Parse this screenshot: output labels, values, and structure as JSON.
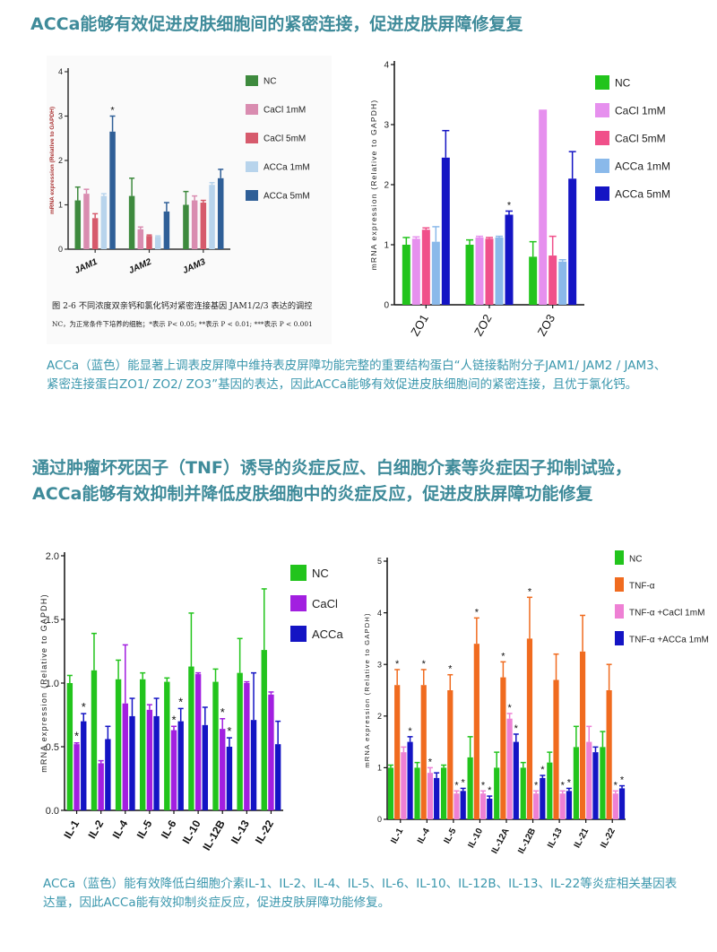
{
  "section1": {
    "heading": "ACCa能够有效促进皮肤细胞间的紧密连接，促进皮肤屏障修复复",
    "description": "ACCa（蓝色）能显著上调表皮屏障中维持表皮屏障功能完整的重要结构蛋白“人链接黏附分子JAM1/ JAM2 / JAM3、 紧密连接蛋白ZO1/ ZO2/ ZO3”基因的表达，因此ACCa能够有效促进皮肤细胞间的紧密连接，且优于氯化钙。"
  },
  "section2": {
    "heading": "通过肿瘤坏死因子（TNF）诱导的炎症反应、白细胞介素等炎症因子抑制试验， ACCa能够有效抑制并降低皮肤细胞中的炎症反应，促进皮肤屏障功能修复",
    "description": "ACCa（蓝色）能有效降低白细胞介素IL-1、IL-2、IL-4、IL-5、IL-6、IL-10、IL-12B、IL-13、IL-22等炎症相关基因表达量，因此ACCa能有效抑制炎症反应，促进皮肤屏障功能修复。"
  },
  "colors": {
    "heading": "#3f8b9a",
    "description": "#3b97ad"
  },
  "chart_data": [
    {
      "id": "jam",
      "type": "bar",
      "title": "",
      "ylabel": "mRNA expression (Relative to GAPDH)",
      "xlabel": "",
      "ylim": [
        0,
        4
      ],
      "yticks": [
        "0",
        "1",
        "2",
        "3",
        "4"
      ],
      "categories": [
        "JAM1",
        "JAM2",
        "JAM3"
      ],
      "series": [
        {
          "name": "NC",
          "color": "#3e8a3e",
          "values": [
            1.1,
            1.2,
            1.0
          ],
          "errors": [
            0.3,
            0.4,
            0.3
          ],
          "marks": [
            "",
            "",
            ""
          ]
        },
        {
          "name": "CaCl 1mM",
          "color": "#d98cb0",
          "values": [
            1.25,
            0.45,
            1.1
          ],
          "errors": [
            0.1,
            0.05,
            0.1
          ],
          "marks": [
            "",
            "",
            ""
          ]
        },
        {
          "name": "CaCl 5mM",
          "color": "#d65a6c",
          "values": [
            0.7,
            0.3,
            1.05
          ],
          "errors": [
            0.1,
            0.02,
            0.05
          ],
          "marks": [
            "",
            "",
            ""
          ]
        },
        {
          "name": "ACCa 1mM",
          "color": "#b8d4ec",
          "values": [
            1.2,
            0.28,
            1.45
          ],
          "errors": [
            0.05,
            0.02,
            0.05
          ],
          "marks": [
            "",
            "",
            ""
          ]
        },
        {
          "name": "ACCa 5mM",
          "color": "#2f5f97",
          "values": [
            2.65,
            0.85,
            1.6
          ],
          "errors": [
            0.35,
            0.2,
            0.2
          ],
          "marks": [
            "*",
            "",
            ""
          ]
        }
      ],
      "caption": [
        "图 2-6 不同浓度双亲钙和氯化钙对紧密连接基因 JAM1/2/3 表达的调控",
        "NC，为正常条件下培养的细胞；*表示 P< 0.05; **表示 P < 0.01; ***表示 P < 0.001"
      ]
    },
    {
      "id": "zo",
      "type": "bar",
      "title": "",
      "ylabel": "mRNA expression (Relative to GAPDH)",
      "xlabel": "",
      "ylim": [
        0,
        4
      ],
      "yticks": [
        "0",
        "1",
        "2",
        "3",
        "4"
      ],
      "categories": [
        "ZO1",
        "ZO2",
        "ZO3"
      ],
      "series": [
        {
          "name": "NC",
          "color": "#22c41c",
          "values": [
            1.0,
            1.0,
            0.8
          ],
          "errors": [
            0.12,
            0.08,
            0.25
          ],
          "marks": [
            "",
            "",
            ""
          ]
        },
        {
          "name": "CaCl 1mM",
          "color": "#e690ee",
          "values": [
            1.1,
            1.12,
            3.25
          ],
          "errors": [
            0.03,
            0.02,
            0.0
          ],
          "marks": [
            "",
            "",
            ""
          ]
        },
        {
          "name": "CaCl 5mM",
          "color": "#f0508a",
          "values": [
            1.25,
            1.1,
            0.82
          ],
          "errors": [
            0.03,
            0.02,
            0.32
          ],
          "marks": [
            "",
            "",
            ""
          ]
        },
        {
          "name": "ACCa 1mM",
          "color": "#8ab9ea",
          "values": [
            1.05,
            1.12,
            0.72
          ],
          "errors": [
            0.25,
            0.02,
            0.03
          ],
          "marks": [
            "",
            "",
            ""
          ]
        },
        {
          "name": "ACCa 5mM",
          "color": "#1414c4",
          "values": [
            2.45,
            1.5,
            2.1
          ],
          "errors": [
            0.45,
            0.06,
            0.45
          ],
          "marks": [
            "",
            "*",
            ""
          ]
        }
      ]
    },
    {
      "id": "il_a",
      "type": "bar",
      "title": "",
      "ylabel": "mRNA expression (Relative to GAPDH)",
      "xlabel": "",
      "ylim": [
        0,
        2.0
      ],
      "yticks": [
        "0.0",
        "0.5",
        "1.0",
        "1.5",
        "2.0"
      ],
      "categories": [
        "IL-1",
        "IL-2",
        "IL-4",
        "IL-5",
        "IL-6",
        "IL-10",
        "IL-12B",
        "IL-13",
        "IL-22"
      ],
      "series": [
        {
          "name": "NC",
          "color": "#22c41c",
          "values": [
            1.0,
            1.1,
            1.03,
            1.03,
            1.01,
            1.13,
            1.01,
            1.08,
            1.26
          ],
          "errors": [
            0.06,
            0.29,
            0.15,
            0.05,
            0.03,
            0.42,
            0.1,
            0.27,
            0.48
          ],
          "marks": [
            "",
            "",
            "",
            "",
            "",
            "",
            "",
            "",
            ""
          ]
        },
        {
          "name": "CaCl",
          "color": "#a21fe0",
          "values": [
            0.52,
            0.37,
            0.84,
            0.79,
            0.63,
            1.07,
            0.64,
            1.0,
            0.91
          ],
          "errors": [
            0.01,
            0.02,
            0.46,
            0.04,
            0.03,
            0.01,
            0.08,
            0.01,
            0.02
          ],
          "marks": [
            "*",
            "",
            "",
            "",
            "*",
            "",
            "*",
            "",
            ""
          ]
        },
        {
          "name": "ACCa",
          "color": "#1414c4",
          "values": [
            0.7,
            0.56,
            0.74,
            0.74,
            0.7,
            0.67,
            0.5,
            0.71,
            0.52
          ],
          "errors": [
            0.06,
            0.1,
            0.14,
            0.14,
            0.1,
            0.14,
            0.07,
            0.37,
            0.18
          ],
          "marks": [
            "*",
            "",
            "",
            "",
            "*",
            "",
            "*",
            "",
            ""
          ]
        }
      ]
    },
    {
      "id": "il_b",
      "type": "bar",
      "title": "",
      "ylabel": "mRNA expression (Relative to GAPDH)",
      "xlabel": "",
      "ylim": [
        0,
        5
      ],
      "yticks": [
        "0",
        "1",
        "2",
        "3",
        "4",
        "5"
      ],
      "categories": [
        "IL-1",
        "IL-4",
        "IL-5",
        "IL-10",
        "IL-12A",
        "IL-12B",
        "IL-13",
        "IL-21",
        "IL-22"
      ],
      "series": [
        {
          "name": "NC",
          "color": "#22c41c",
          "values": [
            1.0,
            1.0,
            1.0,
            1.2,
            1.0,
            1.0,
            1.1,
            1.4,
            1.4
          ],
          "errors": [
            0.05,
            0.1,
            0.05,
            0.4,
            0.3,
            0.1,
            0.2,
            0.4,
            0.3
          ],
          "marks": [
            "",
            "",
            "",
            "",
            "",
            "",
            "",
            "",
            ""
          ]
        },
        {
          "name": "TNF-α",
          "color": "#f06b1f",
          "values": [
            2.6,
            2.6,
            2.5,
            3.4,
            2.75,
            3.5,
            2.7,
            3.25,
            2.5
          ],
          "errors": [
            0.3,
            0.3,
            0.3,
            0.5,
            0.3,
            0.8,
            0.5,
            0.7,
            0.5
          ],
          "marks": [
            "*",
            "*",
            "*",
            "*",
            "*",
            "*",
            "",
            "",
            ""
          ]
        },
        {
          "name": "TNF-α +CaCl 1mM",
          "color": "#ee80d4",
          "values": [
            1.3,
            0.9,
            0.5,
            0.5,
            1.95,
            0.5,
            0.5,
            1.5,
            0.5
          ],
          "errors": [
            0.1,
            0.1,
            0.05,
            0.05,
            0.1,
            0.05,
            0.05,
            0.3,
            0.05
          ],
          "marks": [
            "",
            "*",
            "*",
            "*",
            "*",
            "*",
            "*",
            "",
            "*"
          ]
        },
        {
          "name": "TNF-α +ACCa 1mM",
          "color": "#1414c4",
          "values": [
            1.5,
            0.8,
            0.55,
            0.4,
            1.5,
            0.8,
            0.55,
            1.3,
            0.6
          ],
          "errors": [
            0.1,
            0.1,
            0.05,
            0.05,
            0.15,
            0.05,
            0.05,
            0.1,
            0.05
          ],
          "marks": [
            "*",
            "",
            "*",
            "*",
            "*",
            "*",
            "*",
            "",
            "*"
          ]
        }
      ]
    }
  ]
}
